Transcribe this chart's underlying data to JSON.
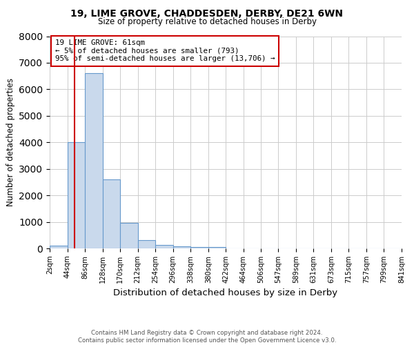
{
  "title1": "19, LIME GROVE, CHADDESDEN, DERBY, DE21 6WN",
  "title2": "Size of property relative to detached houses in Derby",
  "xlabel": "Distribution of detached houses by size in Derby",
  "ylabel": "Number of detached properties",
  "footnote1": "Contains HM Land Registry data © Crown copyright and database right 2024.",
  "footnote2": "Contains public sector information licensed under the Open Government Licence v3.0.",
  "annotation_line1": "19 LIME GROVE: 61sqm",
  "annotation_line2": "← 5% of detached houses are smaller (793)",
  "annotation_line3": "95% of semi-detached houses are larger (13,706) →",
  "property_size": 61,
  "bin_edges": [
    2,
    44,
    86,
    128,
    170,
    212,
    254,
    296,
    338,
    380,
    422,
    464,
    506,
    547,
    589,
    631,
    673,
    715,
    757,
    799,
    841
  ],
  "bar_heights": [
    100,
    4000,
    6600,
    2600,
    950,
    320,
    130,
    80,
    60,
    50,
    0,
    0,
    0,
    0,
    0,
    0,
    0,
    0,
    0,
    0
  ],
  "bar_color": "#c9d9ec",
  "bar_edge_color": "#6699cc",
  "red_line_color": "#cc0000",
  "annotation_box_color": "#cc0000",
  "ylim": [
    0,
    8000
  ],
  "yticks": [
    0,
    1000,
    2000,
    3000,
    4000,
    5000,
    6000,
    7000,
    8000
  ],
  "grid_color": "#cccccc",
  "background_color": "#ffffff"
}
